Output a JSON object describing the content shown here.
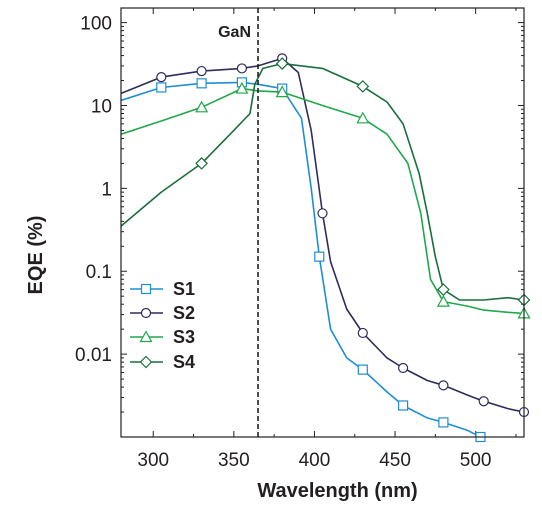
{
  "chart_data": {
    "type": "line",
    "xlabel": "Wavelength (nm)",
    "ylabel": "EQE (%)",
    "xscale": "linear",
    "yscale": "log",
    "xlim": [
      280,
      530
    ],
    "ylim": [
      0.001,
      150
    ],
    "xticks": [
      300,
      350,
      400,
      450,
      500
    ],
    "xtick_labels": [
      "300",
      "350",
      "400",
      "450",
      "500"
    ],
    "yticks": [
      0.01,
      0.1,
      1,
      10,
      100
    ],
    "ytick_labels": [
      "0.01",
      "0.1",
      "1",
      "10",
      "100"
    ],
    "grid": false,
    "legend": {
      "placement": "bottom-left"
    },
    "annotation": {
      "text": "GaN",
      "x": 365,
      "line_style": "dashed vertical"
    },
    "series": [
      {
        "name": "S1",
        "color": "#1f8ed0",
        "marker": "square",
        "points": [
          [
            280,
            11.5
          ],
          [
            305,
            16.5
          ],
          [
            330,
            18.5
          ],
          [
            355,
            19
          ],
          [
            365,
            18
          ],
          [
            380,
            16
          ],
          [
            392,
            7
          ],
          [
            398,
            1
          ],
          [
            403,
            0.15
          ],
          [
            410,
            0.02
          ],
          [
            420,
            0.009
          ],
          [
            430,
            0.0065
          ],
          [
            445,
            0.0035
          ],
          [
            455,
            0.0024
          ],
          [
            470,
            0.0017
          ],
          [
            480,
            0.0015
          ],
          [
            495,
            0.0012
          ],
          [
            503,
            0.001
          ]
        ],
        "marker_x": [
          305,
          330,
          355,
          380,
          403,
          430,
          455,
          480,
          503
        ]
      },
      {
        "name": "S2",
        "color": "#2d2e5a",
        "marker": "circle",
        "points": [
          [
            280,
            14
          ],
          [
            305,
            22
          ],
          [
            330,
            26
          ],
          [
            355,
            28
          ],
          [
            365,
            30
          ],
          [
            380,
            37
          ],
          [
            390,
            25
          ],
          [
            398,
            5
          ],
          [
            405,
            0.5
          ],
          [
            410,
            0.13
          ],
          [
            420,
            0.035
          ],
          [
            430,
            0.018
          ],
          [
            445,
            0.009
          ],
          [
            455,
            0.0068
          ],
          [
            470,
            0.0048
          ],
          [
            480,
            0.0042
          ],
          [
            495,
            0.0032
          ],
          [
            505,
            0.0027
          ],
          [
            520,
            0.0022
          ],
          [
            530,
            0.002
          ]
        ],
        "marker_x": [
          305,
          330,
          355,
          380,
          405,
          430,
          455,
          480,
          505,
          530
        ]
      },
      {
        "name": "S3",
        "color": "#20a84a",
        "marker": "triangle",
        "points": [
          [
            280,
            4.5
          ],
          [
            305,
            6.5
          ],
          [
            330,
            9.5
          ],
          [
            355,
            16
          ],
          [
            365,
            15
          ],
          [
            380,
            14.5
          ],
          [
            405,
            10
          ],
          [
            430,
            7
          ],
          [
            445,
            4.5
          ],
          [
            458,
            2
          ],
          [
            466,
            0.5
          ],
          [
            472,
            0.08
          ],
          [
            480,
            0.043
          ],
          [
            495,
            0.038
          ],
          [
            505,
            0.034
          ],
          [
            520,
            0.032
          ],
          [
            530,
            0.031
          ]
        ],
        "marker_x": [
          330,
          355,
          380,
          430,
          480,
          530
        ]
      },
      {
        "name": "S4",
        "color": "#1a6e3e",
        "marker": "diamond",
        "points": [
          [
            280,
            0.35
          ],
          [
            305,
            0.9
          ],
          [
            330,
            2
          ],
          [
            350,
            5
          ],
          [
            360,
            8
          ],
          [
            363,
            18
          ],
          [
            368,
            28
          ],
          [
            380,
            32
          ],
          [
            405,
            28
          ],
          [
            430,
            17
          ],
          [
            445,
            11
          ],
          [
            455,
            6
          ],
          [
            465,
            1.5
          ],
          [
            470,
            0.5
          ],
          [
            475,
            0.15
          ],
          [
            480,
            0.06
          ],
          [
            490,
            0.045
          ],
          [
            505,
            0.045
          ],
          [
            520,
            0.048
          ],
          [
            530,
            0.045
          ]
        ],
        "marker_x": [
          330,
          380,
          430,
          480,
          530
        ]
      }
    ]
  }
}
